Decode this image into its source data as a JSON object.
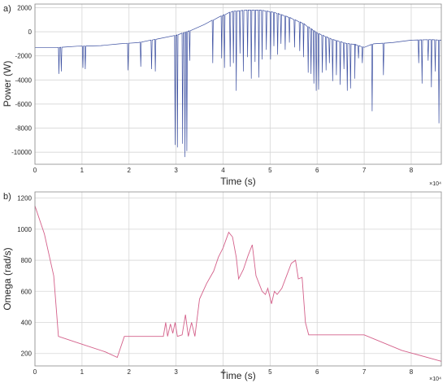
{
  "chart_data": [
    {
      "type": "line",
      "panel_label": "a)",
      "xlabel": "Time (s)",
      "ylabel": "Power (W)",
      "x_exponent_label": "×10⁴",
      "xlim": [
        0,
        86400
      ],
      "ylim": [
        -11000,
        2300
      ],
      "grid": true,
      "x_tick_values": [
        0,
        10000,
        20000,
        30000,
        40000,
        50000,
        60000,
        70000,
        80000
      ],
      "x_tick_labels": [
        "0",
        "1",
        "2",
        "3",
        "4",
        "5",
        "6",
        "7",
        "8"
      ],
      "y_tick_values": [
        2000,
        0,
        -2000,
        -4000,
        -6000,
        -8000,
        -10000
      ],
      "y_tick_labels": [
        "2000",
        "0",
        "-2000",
        "-4000",
        "-6000",
        "-8000",
        "-10000"
      ],
      "line_color": "#3a4ea0",
      "series": [
        {
          "baseline": [
            [
              0,
              -1300
            ],
            [
              5000,
              -1300
            ],
            [
              9000,
              -1200
            ],
            [
              14000,
              -1150
            ],
            [
              18000,
              -1000
            ],
            [
              22000,
              -900
            ],
            [
              26000,
              -600
            ],
            [
              30000,
              -300
            ],
            [
              33000,
              100
            ],
            [
              36000,
              600
            ],
            [
              39000,
              1200
            ],
            [
              42000,
              1700
            ],
            [
              45000,
              1800
            ],
            [
              48000,
              1800
            ],
            [
              51000,
              1600
            ],
            [
              54000,
              1200
            ],
            [
              57000,
              700
            ],
            [
              60000,
              -100
            ],
            [
              63000,
              -600
            ],
            [
              66000,
              -950
            ],
            [
              68000,
              -1050
            ],
            [
              70000,
              -1300
            ],
            [
              72000,
              -1000
            ],
            [
              76000,
              -900
            ],
            [
              80000,
              -700
            ],
            [
              84000,
              -650
            ],
            [
              86400,
              -700
            ]
          ],
          "spikes": [
            [
              5100,
              -3500
            ],
            [
              5600,
              -3300
            ],
            [
              10200,
              -3000
            ],
            [
              10700,
              -3100
            ],
            [
              19800,
              -3200
            ],
            [
              22500,
              -2900
            ],
            [
              24800,
              -3100
            ],
            [
              25600,
              -3300
            ],
            [
              29800,
              -9400
            ],
            [
              30300,
              -9600
            ],
            [
              31400,
              -9300
            ],
            [
              31900,
              -10400
            ],
            [
              32300,
              -9900
            ],
            [
              32900,
              -2400
            ],
            [
              37800,
              -2600
            ],
            [
              39700,
              -2200
            ],
            [
              40300,
              -3000
            ],
            [
              41500,
              -2900
            ],
            [
              42200,
              -2600
            ],
            [
              42800,
              -4900
            ],
            [
              43600,
              -1800
            ],
            [
              44300,
              -3300
            ],
            [
              45200,
              -2100
            ],
            [
              46000,
              -3900
            ],
            [
              46800,
              -2500
            ],
            [
              47600,
              -3800
            ],
            [
              48300,
              -2300
            ],
            [
              49200,
              -1500
            ],
            [
              50100,
              -2300
            ],
            [
              50800,
              -1200
            ],
            [
              51600,
              -1900
            ],
            [
              52300,
              -1000
            ],
            [
              53200,
              -1500
            ],
            [
              54100,
              -900
            ],
            [
              55200,
              -1300
            ],
            [
              56300,
              -1600
            ],
            [
              57100,
              -2100
            ],
            [
              58100,
              -3400
            ],
            [
              58700,
              -3500
            ],
            [
              59300,
              -4300
            ],
            [
              59800,
              -4900
            ],
            [
              60300,
              -4800
            ],
            [
              61100,
              -3400
            ],
            [
              61900,
              -3200
            ],
            [
              62600,
              -2600
            ],
            [
              63300,
              -4100
            ],
            [
              64100,
              -3600
            ],
            [
              64900,
              -4400
            ],
            [
              65700,
              -3100
            ],
            [
              66400,
              -4900
            ],
            [
              67100,
              -4700
            ],
            [
              68000,
              -3900
            ],
            [
              68800,
              -2200
            ],
            [
              69600,
              -2600
            ],
            [
              71700,
              -6600
            ],
            [
              74100,
              -3600
            ],
            [
              81600,
              -2600
            ],
            [
              82300,
              -4300
            ],
            [
              83600,
              -2400
            ],
            [
              84300,
              -4600
            ],
            [
              85100,
              -3300
            ],
            [
              85900,
              -7600
            ]
          ]
        }
      ]
    },
    {
      "type": "line",
      "panel_label": "b)",
      "xlabel": "Time (s)",
      "ylabel": "Omega (rad/s)",
      "x_exponent_label": "×10⁴",
      "xlim": [
        0,
        86400
      ],
      "ylim": [
        120,
        1240
      ],
      "grid": true,
      "x_tick_values": [
        0,
        10000,
        20000,
        30000,
        40000,
        50000,
        60000,
        70000,
        80000
      ],
      "x_tick_labels": [
        "0",
        "1",
        "2",
        "3",
        "4",
        "5",
        "6",
        "7",
        "8"
      ],
      "y_tick_values": [
        1200,
        1000,
        800,
        600,
        400,
        200
      ],
      "y_tick_labels": [
        "1200",
        "1000",
        "800",
        "600",
        "400",
        "200"
      ],
      "line_color": "#d4608a",
      "series": [
        {
          "points": [
            [
              0,
              1150
            ],
            [
              2000,
              970
            ],
            [
              4000,
              700
            ],
            [
              5000,
              310
            ],
            [
              10000,
              260
            ],
            [
              15000,
              210
            ],
            [
              17500,
              175
            ],
            [
              19000,
              310
            ],
            [
              22000,
              310
            ],
            [
              26000,
              310
            ],
            [
              27300,
              310
            ],
            [
              27800,
              400
            ],
            [
              28200,
              310
            ],
            [
              28800,
              390
            ],
            [
              29300,
              330
            ],
            [
              29800,
              400
            ],
            [
              30300,
              310
            ],
            [
              31300,
              320
            ],
            [
              32000,
              450
            ],
            [
              32600,
              310
            ],
            [
              33300,
              400
            ],
            [
              34000,
              310
            ],
            [
              35000,
              550
            ],
            [
              36500,
              650
            ],
            [
              38000,
              730
            ],
            [
              39000,
              820
            ],
            [
              40000,
              880
            ],
            [
              41200,
              980
            ],
            [
              42000,
              950
            ],
            [
              42800,
              820
            ],
            [
              43300,
              680
            ],
            [
              44300,
              740
            ],
            [
              45300,
              830
            ],
            [
              46200,
              900
            ],
            [
              47000,
              700
            ],
            [
              48300,
              600
            ],
            [
              49000,
              580
            ],
            [
              49500,
              620
            ],
            [
              50300,
              520
            ],
            [
              50900,
              600
            ],
            [
              51500,
              580
            ],
            [
              52500,
              620
            ],
            [
              53500,
              700
            ],
            [
              54500,
              780
            ],
            [
              55400,
              800
            ],
            [
              56000,
              680
            ],
            [
              56800,
              690
            ],
            [
              57500,
              400
            ],
            [
              58200,
              320
            ],
            [
              60000,
              320
            ],
            [
              70000,
              320
            ],
            [
              78000,
              220
            ],
            [
              86400,
              150
            ]
          ]
        }
      ]
    }
  ]
}
